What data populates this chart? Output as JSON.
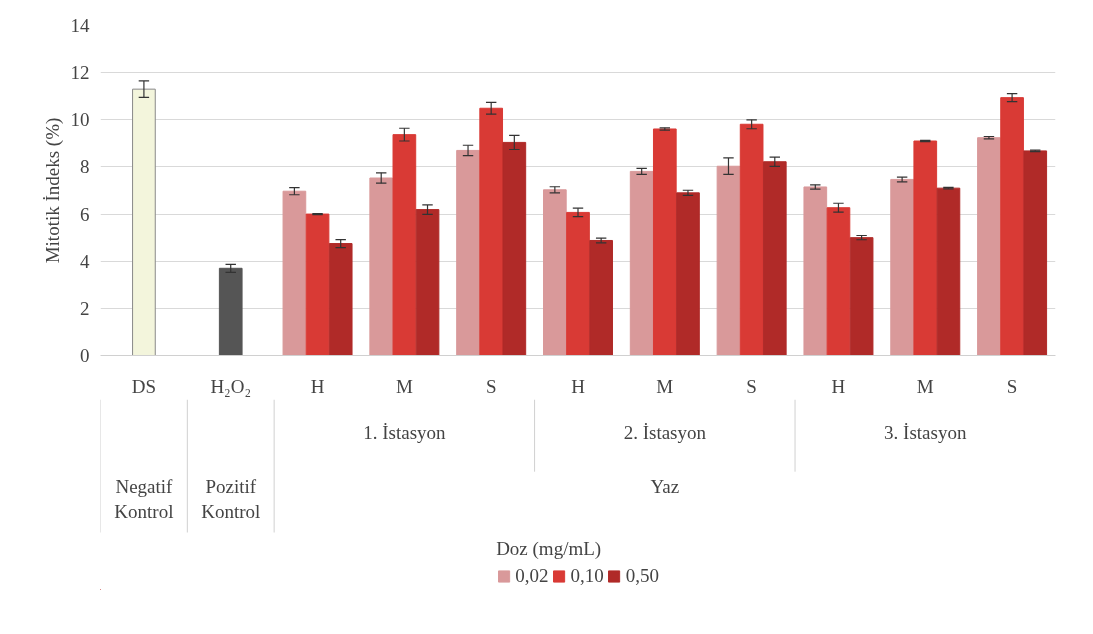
{
  "chart_data": {
    "type": "bar",
    "ylabel": "Mitotik İndeks (%)",
    "legend_title": "Doz (mg/mL)",
    "legend": "bottom",
    "grid": "y",
    "categories": [
      "DS",
      "H₂O₂",
      "H",
      "M",
      "S",
      "H",
      "M",
      "S",
      "H",
      "M",
      "S"
    ],
    "ylim": [
      0,
      14
    ],
    "yticks": [
      0,
      2,
      4,
      6,
      8,
      10,
      12,
      14
    ],
    "annotations": [
      "1. İstasyon",
      "2. İstasyon",
      "3. İstasyon",
      "Yaz",
      "Negatif Kontrol",
      "Pozitif Kontrol"
    ],
    "series": [
      {
        "color": "#f3f5dc",
        "values": [
          11.3,
          null,
          null,
          null,
          null,
          null,
          null,
          null,
          null,
          null,
          null
        ],
        "errors": [
          0.35,
          null,
          null,
          null,
          null,
          null,
          null,
          null,
          null,
          null,
          null
        ]
      },
      {
        "color": "#555555",
        "values": [
          null,
          3.7,
          null,
          null,
          null,
          null,
          null,
          null,
          null,
          null,
          null
        ],
        "errors": [
          null,
          0.17,
          null,
          null,
          null,
          null,
          null,
          null,
          null,
          null,
          null
        ]
      },
      {
        "name": "0,02",
        "color": "#d9999a",
        "values": [
          null,
          null,
          6.97,
          7.53,
          8.7,
          7.03,
          7.81,
          8.03,
          7.15,
          7.47,
          9.24
        ],
        "errors": [
          null,
          null,
          0.15,
          0.22,
          0.22,
          0.13,
          0.13,
          0.35,
          0.09,
          0.1,
          0.05
        ]
      },
      {
        "name": "0,10",
        "color": "#d93a35",
        "values": [
          null,
          null,
          6.0,
          9.37,
          10.49,
          6.07,
          9.61,
          9.81,
          6.27,
          9.1,
          10.94
        ],
        "errors": [
          null,
          null,
          0.02,
          0.27,
          0.25,
          0.18,
          0.05,
          0.19,
          0.19,
          0.03,
          0.17
        ]
      },
      {
        "name": "0,50",
        "color": "#b02a28",
        "values": [
          null,
          null,
          4.75,
          6.19,
          9.04,
          4.88,
          6.9,
          8.22,
          5.0,
          7.1,
          8.68
        ],
        "errors": [
          null,
          null,
          0.17,
          0.2,
          0.3,
          0.1,
          0.11,
          0.2,
          0.09,
          0.03,
          0.03
        ]
      }
    ]
  }
}
